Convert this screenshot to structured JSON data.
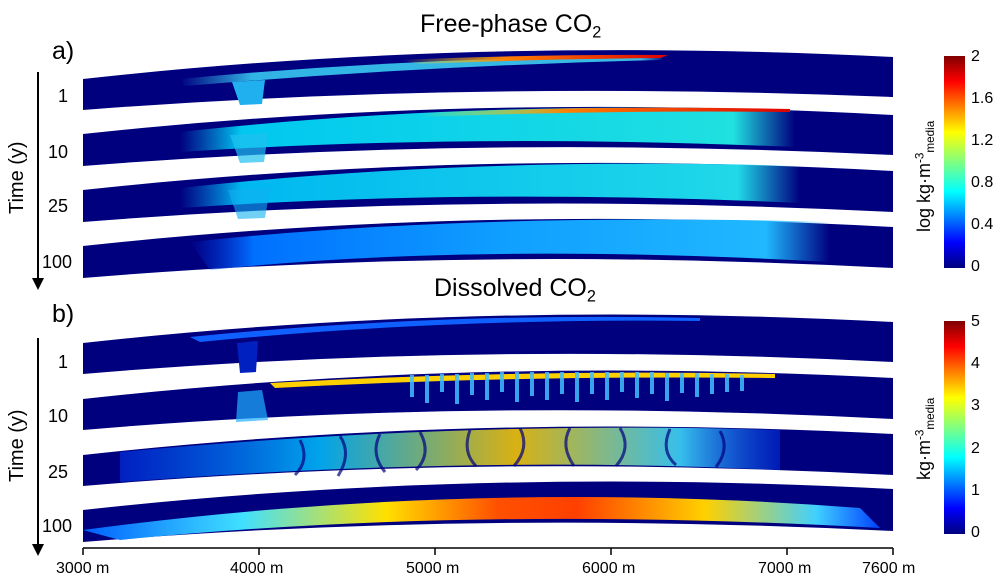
{
  "panel_a": {
    "label": "a)",
    "title_main": "Free-phase CO",
    "title_sub": "2",
    "time_axis_label": "Time (y)",
    "time_ticks": [
      "1",
      "10",
      "25",
      "100"
    ],
    "colorbar": {
      "label_main": "log kg·m",
      "label_sup": "-3",
      "label_sub": "media",
      "ticks": [
        "2",
        "1.6",
        "1.2",
        "0.8",
        "0.4",
        "0"
      ]
    }
  },
  "panel_b": {
    "label": "b)",
    "title_main": "Dissolved CO",
    "title_sub": "2",
    "time_axis_label": "Time (y)",
    "time_ticks": [
      "1",
      "10",
      "25",
      "100"
    ],
    "colorbar": {
      "label_main": "kg·m",
      "label_sup": "-3",
      "label_sub": "media",
      "ticks": [
        "5",
        "4",
        "3",
        "2",
        "1",
        "0"
      ]
    }
  },
  "x_axis": {
    "ticks": [
      "3000 m",
      "4000 m",
      "5000 m",
      "6000 m",
      "7000 m",
      "7600 m"
    ]
  },
  "colors": {
    "background_blue": "#00007f",
    "colormap": "jet"
  }
}
